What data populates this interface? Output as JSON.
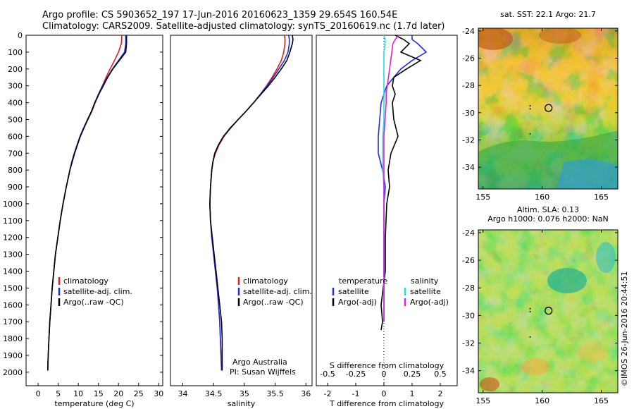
{
  "header": {
    "title_line1": "Argo profile: CS 5903652_197 17-Jun-2016 20160623_1359 29.654S 160.54E",
    "title_line2": "Climatology: CARS2009. Satellite-adjusted climatology: synTS_20160619.nc (1.7d later)"
  },
  "credit": {
    "line1": "Argo Australia",
    "line2": "PI: Susan Wijffels"
  },
  "timestamp": "©IMOS 26-Jun-2016 20:44:51",
  "colors": {
    "climatology": "#dd2222",
    "satellite": "#1f2fd8",
    "argo": "#000000",
    "sal_satellite": "#22dddd",
    "sal_argo": "#e020e0"
  },
  "chart_data": [
    {
      "type": "line",
      "name": "temperature-profile",
      "xlabel": "temperature (deg C)",
      "xlim": [
        -3,
        31
      ],
      "ylim": [
        0,
        2080
      ],
      "y_reversed": true,
      "x_ticks": [
        0,
        5,
        10,
        15,
        20,
        25,
        30
      ],
      "y_ticks": [
        0,
        100,
        200,
        300,
        400,
        500,
        600,
        700,
        800,
        900,
        1000,
        1100,
        1200,
        1300,
        1400,
        1500,
        1600,
        1700,
        1800,
        1900,
        2000
      ],
      "depth": [
        0,
        25,
        50,
        100,
        150,
        200,
        250,
        300,
        350,
        400,
        450,
        500,
        550,
        600,
        650,
        700,
        750,
        800,
        900,
        1000,
        1100,
        1200,
        1300,
        1400,
        1500,
        1600,
        1700,
        1800,
        1900,
        1990
      ],
      "series": [
        {
          "name": "climatology",
          "values": [
            20.8,
            20.8,
            20.7,
            20.0,
            19.0,
            17.9,
            16.9,
            16.0,
            15.1,
            14.2,
            13.4,
            12.4,
            11.4,
            10.5,
            9.7,
            9.0,
            8.4,
            7.9,
            7.0,
            6.2,
            5.5,
            4.9,
            4.3,
            3.9,
            3.5,
            3.2,
            2.9,
            2.7,
            2.5,
            2.4
          ]
        },
        {
          "name": "satellite-adj. clim.",
          "values": [
            21.8,
            21.8,
            21.8,
            21.5,
            20.0,
            18.5,
            17.2,
            16.0,
            15.0,
            14.1,
            13.3,
            12.3,
            11.3,
            10.4,
            9.7,
            9.0,
            8.4,
            7.9,
            7.0,
            6.2,
            5.5,
            4.9,
            4.3,
            3.9,
            3.5,
            3.2,
            2.9,
            2.7,
            2.5,
            2.4
          ]
        },
        {
          "name": "Argo(..raw -QC)",
          "values": [
            22.0,
            22.0,
            22.0,
            21.8,
            20.2,
            18.6,
            17.3,
            16.2,
            15.1,
            14.1,
            13.3,
            12.3,
            11.4,
            10.5,
            9.8,
            9.1,
            8.5,
            7.9,
            7.0,
            6.2,
            5.5,
            4.9,
            4.3,
            3.9,
            3.5,
            3.2,
            2.9,
            2.7,
            2.5,
            2.4
          ]
        }
      ],
      "legend": [
        "climatology",
        "satellite-adj. clim.",
        "Argo(..raw -QC)"
      ],
      "legend_position": "bottom-left"
    },
    {
      "type": "line",
      "name": "salinity-profile",
      "xlabel": "salinity",
      "xlim": [
        33.8,
        36.1
      ],
      "ylim": [
        0,
        2080
      ],
      "y_reversed": true,
      "x_ticks": [
        34,
        34.5,
        35,
        35.5,
        36
      ],
      "depth": [
        0,
        25,
        50,
        100,
        150,
        200,
        250,
        300,
        350,
        400,
        450,
        500,
        550,
        600,
        650,
        700,
        750,
        800,
        900,
        1000,
        1100,
        1200,
        1300,
        1400,
        1500,
        1600,
        1700,
        1800,
        1900,
        1990
      ],
      "series": [
        {
          "name": "climatology",
          "values": [
            35.65,
            35.66,
            35.66,
            35.64,
            35.6,
            35.53,
            35.45,
            35.36,
            35.26,
            35.15,
            35.03,
            34.9,
            34.78,
            34.67,
            34.59,
            34.53,
            34.49,
            34.47,
            34.45,
            34.44,
            34.45,
            34.47,
            34.5,
            34.53,
            34.56,
            34.58,
            34.6,
            34.61,
            34.62,
            34.63
          ]
        },
        {
          "name": "satellite-adj. clim.",
          "values": [
            35.72,
            35.73,
            35.73,
            35.71,
            35.65,
            35.56,
            35.47,
            35.37,
            35.26,
            35.15,
            35.03,
            34.9,
            34.78,
            34.66,
            34.58,
            34.52,
            34.49,
            34.47,
            34.45,
            34.44,
            34.45,
            34.47,
            34.5,
            34.53,
            34.56,
            34.58,
            34.6,
            34.61,
            34.62,
            34.63
          ]
        },
        {
          "name": "Argo(..raw -QC)",
          "values": [
            35.78,
            35.79,
            35.78,
            35.74,
            35.69,
            35.6,
            35.5,
            35.39,
            35.27,
            35.15,
            35.03,
            34.9,
            34.77,
            34.66,
            34.58,
            34.52,
            34.49,
            34.47,
            34.45,
            34.44,
            34.45,
            34.48,
            34.51,
            34.54,
            34.57,
            34.6,
            34.63,
            34.64,
            34.64,
            34.64
          ]
        }
      ],
      "legend": [
        "climatology",
        "satellite-adj. clim.",
        "Argo(..raw -QC)"
      ],
      "legend_position": "bottom-left"
    },
    {
      "type": "line",
      "name": "difference-profile",
      "xlabel": "T difference from climatology",
      "xlabel_top": "S difference from climatology",
      "xlim": [
        -2.4,
        2.6
      ],
      "ylim": [
        0,
        2080
      ],
      "y_reversed": true,
      "x_ticks": [
        -2,
        -1,
        0,
        1,
        2
      ],
      "s_ticks": [
        -0.5,
        -0.25,
        0,
        0.25,
        0.5
      ],
      "s_tick_labels": [
        "-0.5",
        "-0.25",
        "0",
        "0.25",
        "0.5"
      ],
      "s_scale": 4,
      "depth": [
        0,
        25,
        50,
        100,
        150,
        200,
        250,
        300,
        350,
        400,
        500,
        600,
        700,
        800,
        900,
        1000,
        1200,
        1400,
        1600,
        1700,
        1750,
        1800,
        1850,
        1900,
        1950,
        2000
      ],
      "series": [
        {
          "name": "temperature satellite",
          "values": [
            1.0,
            1.0,
            1.2,
            1.5,
            1.0,
            0.6,
            0.35,
            0.1,
            0.0,
            -0.1,
            -0.15,
            -0.2,
            -0.2,
            -0.05,
            0.05,
            0.0,
            0.0,
            0.0,
            0.0,
            0.0,
            null,
            null,
            null,
            null,
            null,
            null
          ]
        },
        {
          "name": "temperature Argo(-adj)",
          "values": [
            0.4,
            0.7,
            0.9,
            0.6,
            1.3,
            0.8,
            0.35,
            0.3,
            0.4,
            0.3,
            0.35,
            0.5,
            0.25,
            0.15,
            0.2,
            0.1,
            0.05,
            0.05,
            -0.1,
            -0.05,
            -0.1,
            null,
            null,
            null,
            null,
            null
          ]
        },
        {
          "name": "salinity satellite",
          "values": [
            0.0,
            0.01,
            0.01,
            0.0,
            0.0,
            0.0,
            0.0,
            0.0,
            0.0,
            0.0,
            0.0,
            -0.01,
            -0.01,
            -0.01,
            0.0,
            0.0,
            0.0,
            0.0,
            0.0,
            0.0,
            null,
            null,
            null,
            null,
            null,
            null
          ]
        },
        {
          "name": "salinity Argo(-adj)",
          "values": [
            0.13,
            0.1,
            0.08,
            0.07,
            0.06,
            0.05,
            0.04,
            0.03,
            0.02,
            0.02,
            0.01,
            0.0,
            0.0,
            0.0,
            0.0,
            0.0,
            0.0,
            0.0,
            0.0,
            0.0,
            null,
            null,
            null,
            null,
            null,
            null
          ]
        }
      ],
      "legend_temperature_title": "temperature",
      "legend_salinity_title": "salinity",
      "legend_items": [
        "satellite",
        "Argo(-adj)"
      ],
      "legend_position": "bottom"
    },
    {
      "type": "heatmap",
      "name": "sst-map",
      "title": "sat. SST: 22.1 Argo: 21.7",
      "x_ticks": [
        155,
        160,
        165
      ],
      "y_ticks": [
        -24,
        -26,
        -28,
        -30,
        -32,
        -34
      ],
      "xlim": [
        154.6,
        166.4
      ],
      "ylim": [
        -35.6,
        -23.8
      ],
      "profile_marker": {
        "lon": 160.54,
        "lat": -29.654
      }
    },
    {
      "type": "heatmap",
      "name": "sla-map",
      "title_line1": "Altim. SLA: 0.13",
      "title_line2": "Argo h1000: 0.076 h2000: NaN",
      "x_ticks": [
        155,
        160,
        165
      ],
      "y_ticks": [
        -24,
        -26,
        -28,
        -30,
        -32,
        -34
      ],
      "xlim": [
        154.6,
        166.4
      ],
      "ylim": [
        -35.6,
        -23.8
      ],
      "profile_marker": {
        "lon": 160.54,
        "lat": -29.654
      }
    }
  ]
}
